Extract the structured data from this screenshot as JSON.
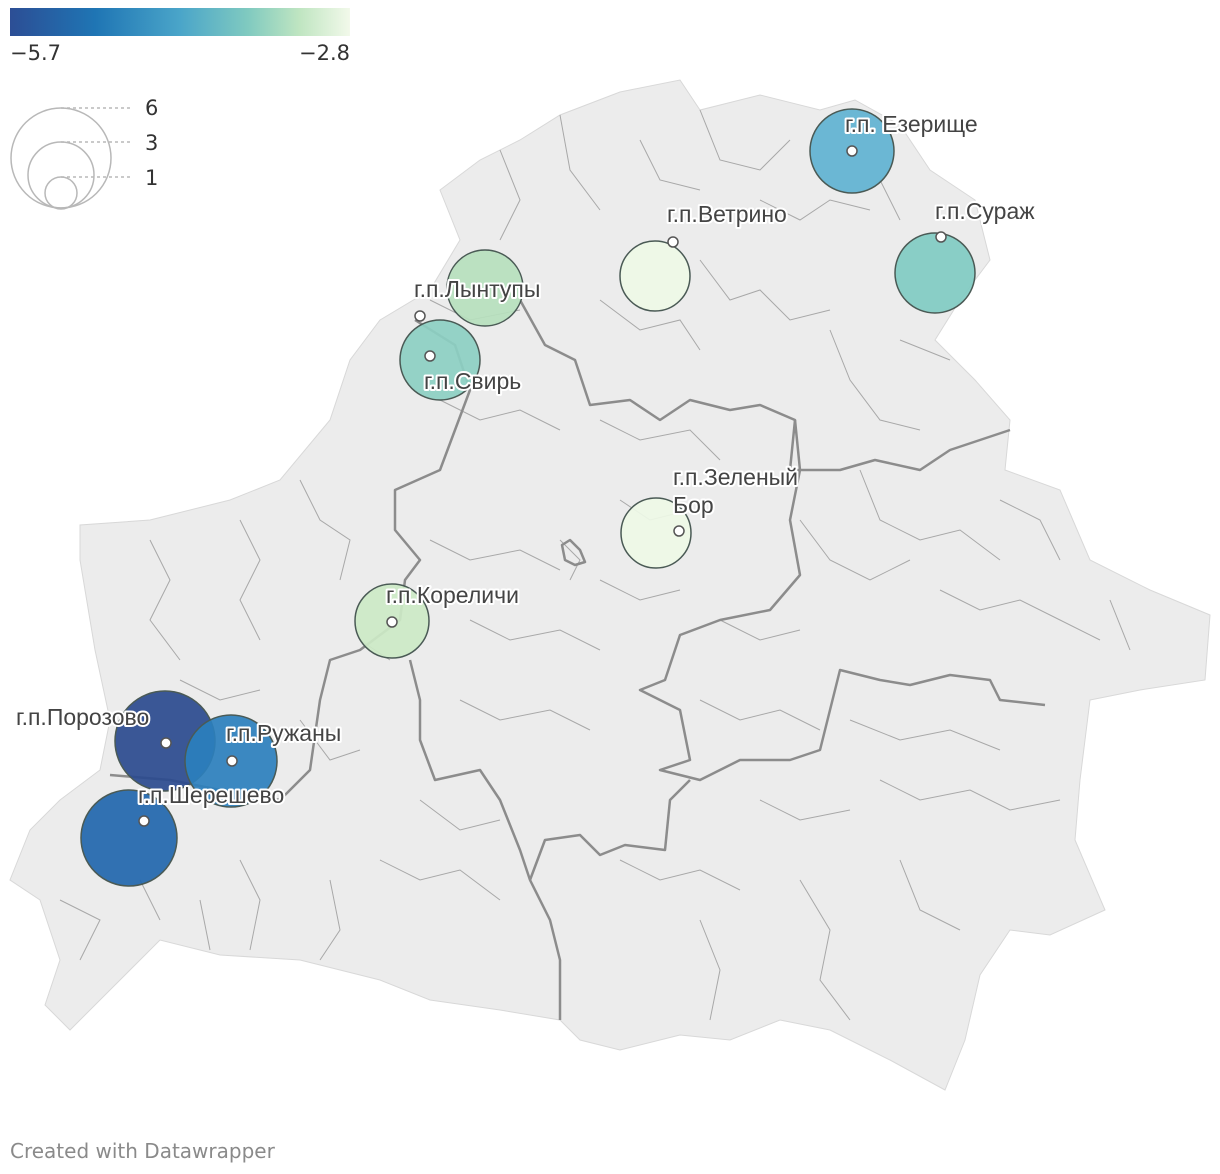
{
  "color_legend": {
    "min_label": "−5.7",
    "max_label": "−2.8",
    "colors": [
      "#2c4e95",
      "#1f75b4",
      "#4aa5c9",
      "#80cac0",
      "#bfe5c1",
      "#f2f9ea"
    ]
  },
  "size_legend": {
    "values": [
      "6",
      "3",
      "1"
    ]
  },
  "towns": [
    {
      "id": "ezerishche",
      "name": "г.п. Езерище",
      "color": "#5fb2d1"
    },
    {
      "id": "surazh",
      "name": "г.п.Сураж",
      "color": "#80cbc2"
    },
    {
      "id": "vetrino",
      "name": "г.п.Ветрино",
      "color": "#eef8e6"
    },
    {
      "id": "lyntupy",
      "name": "г.п.Лынтупы",
      "color": "#b6dfbd"
    },
    {
      "id": "svir",
      "name": "г.п.Свирь",
      "color": "#8ccfc2"
    },
    {
      "id": "zeleny-bor",
      "name_lines": [
        "г.п.Зеленый",
        "Бор"
      ],
      "color": "#eef8e6"
    },
    {
      "id": "korelichi",
      "name": "г.п.Кореличи",
      "color": "#cce9c5"
    },
    {
      "id": "porozovo",
      "name": "г.п.Порозово",
      "color": "#2a4a8e"
    },
    {
      "id": "ruzhany",
      "name": "г.п.Ружаны",
      "color": "#2b7fbd"
    },
    {
      "id": "sheresheevo",
      "name": "г.п.Шерешево",
      "color": "#2166ad"
    }
  ],
  "credit": "Created with Datawrapper"
}
